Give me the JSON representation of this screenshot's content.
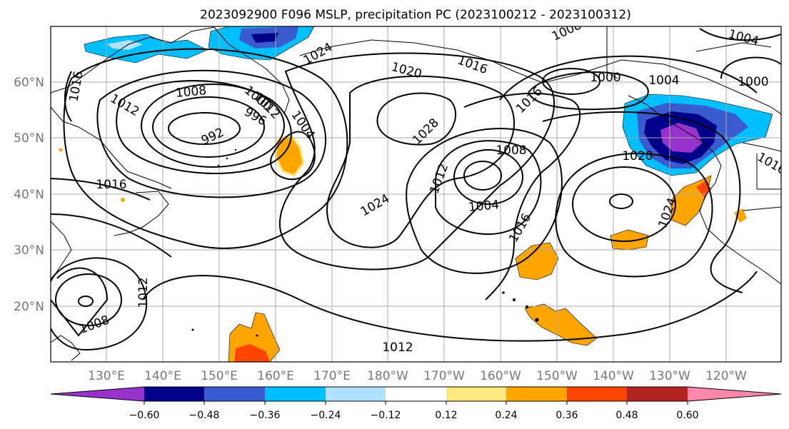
{
  "title": "2023092900 F096 MSLP, precipitation PC (2023100212 - 2023100312)",
  "lat_labels": [
    "60°N",
    "50°N",
    "40°N",
    "30°N",
    "20°N"
  ],
  "lon_labels": [
    "130°E",
    "140°E",
    "150°E",
    "160°E",
    "170°E",
    "180°W",
    "170°W",
    "160°W",
    "150°W",
    "140°W",
    "130°W",
    "120°W"
  ],
  "isobar_labels": [
    "1016",
    "1012",
    "1008",
    "1000",
    "996",
    "992",
    "1004",
    "1024",
    "1020",
    "1016",
    "1008",
    "1000",
    "1004",
    "1004",
    "1000",
    "1028",
    "1008",
    "1012",
    "1004",
    "1024",
    "1020",
    "1024",
    "1016",
    "1016",
    "1012",
    "1008",
    "1012",
    "1016",
    "1012",
    "1016"
  ],
  "colorbar": {
    "ticks": [
      "−0.60",
      "−0.48",
      "−0.36",
      "−0.24",
      "−0.12",
      "0.12",
      "0.24",
      "0.36",
      "0.48",
      "0.60"
    ],
    "colors": [
      "#9932cc",
      "#00008b",
      "#3a5bcf",
      "#00bfff",
      "#b0e2ff",
      "#ffffff",
      "#ffe880",
      "#ffa500",
      "#ff4500",
      "#b22222",
      "#ff88aa"
    ]
  },
  "colors": {
    "coast": "#000000",
    "grid": "#999999",
    "isobar": "#000000",
    "neg_purple": "#9932cc",
    "neg_navy": "#00008b",
    "neg_blue": "#3a5bcf",
    "neg_sky": "#00bfff",
    "neg_pale": "#b0e2ff",
    "pos_yellow": "#ffe880",
    "pos_orange": "#ffa500",
    "pos_red": "#ff4500"
  }
}
